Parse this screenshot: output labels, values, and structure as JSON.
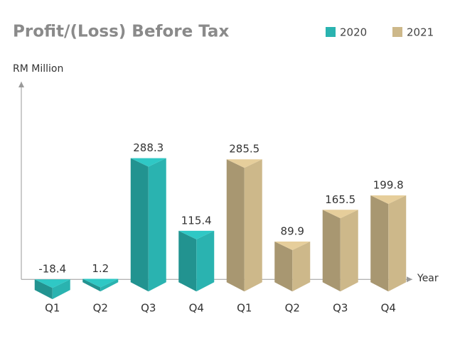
{
  "chart_data": {
    "type": "bar",
    "title": "Profit/(Loss) Before Tax",
    "y_label": "RM Million",
    "x_label": "Year",
    "categories": [
      "Q1",
      "Q2",
      "Q3",
      "Q4",
      "Q1",
      "Q2",
      "Q3",
      "Q4"
    ],
    "series": [
      {
        "name": "2020",
        "color": "#2ab3b0",
        "values": [
          -18.4,
          1.2,
          288.3,
          115.4,
          null,
          null,
          null,
          null
        ]
      },
      {
        "name": "2021",
        "color": "#cdb88a",
        "values": [
          null,
          null,
          null,
          null,
          285.5,
          89.9,
          165.5,
          199.8
        ]
      }
    ],
    "ylim": [
      -30,
      470
    ],
    "legend": "top-right"
  }
}
